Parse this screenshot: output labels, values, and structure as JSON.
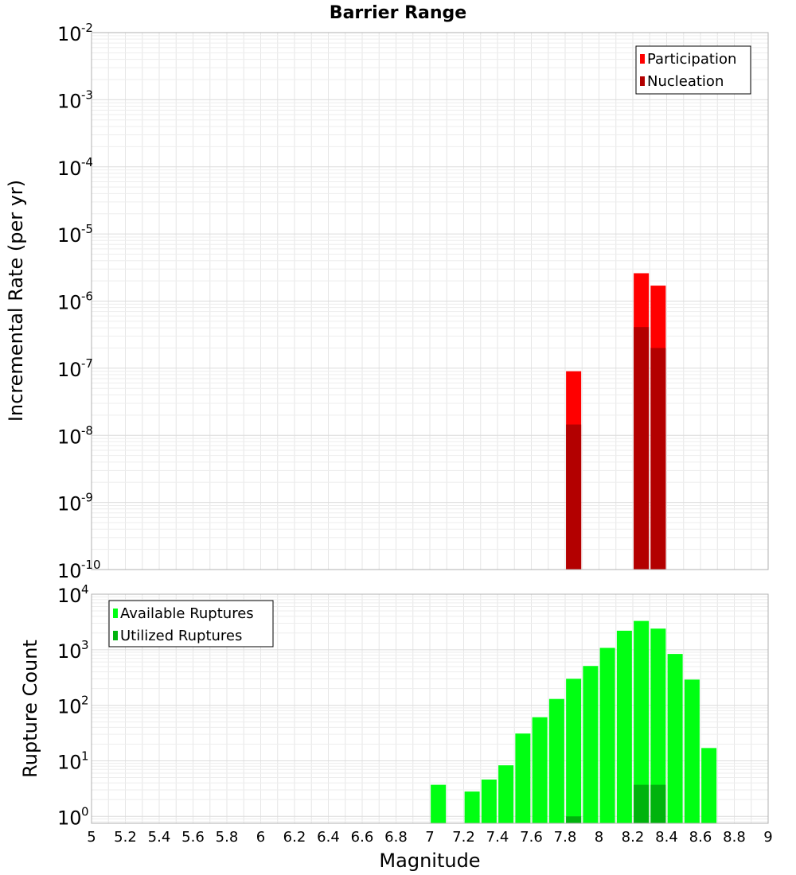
{
  "chart_data": [
    {
      "type": "bar",
      "title": "Barrier Range",
      "xlabel": "Magnitude",
      "ylabel": "Incremental Rate (per yr)",
      "yscale": "log",
      "xlim": [
        5,
        9
      ],
      "ylim": [
        1e-10,
        0.01
      ],
      "y_tick_exponents": [
        "-10",
        "-9",
        "-8",
        "-7",
        "-6",
        "-5",
        "-4",
        "-3",
        "-2"
      ],
      "y_tick_base": "10",
      "grid": true,
      "legend_position": "top-right",
      "series": [
        {
          "name": "Participation",
          "color": "#ff0000",
          "points": [
            {
              "x": 7.85,
              "y": 9e-08
            },
            {
              "x": 8.25,
              "y": 2.6e-06
            },
            {
              "x": 8.35,
              "y": 1.7e-06
            }
          ]
        },
        {
          "name": "Nucleation",
          "color": "#b30000",
          "points": [
            {
              "x": 7.85,
              "y": 1.45e-08
            },
            {
              "x": 8.25,
              "y": 4.1e-07
            },
            {
              "x": 8.35,
              "y": 2e-07
            }
          ]
        }
      ]
    },
    {
      "type": "bar",
      "title": "",
      "xlabel": "Magnitude",
      "ylabel": "Rupture Count",
      "yscale": "log",
      "xlim": [
        5,
        9
      ],
      "ylim": [
        0.75,
        10000
      ],
      "y_tick_exponents": [
        "0",
        "1",
        "2",
        "3",
        "4"
      ],
      "y_tick_base": "10",
      "x_ticks": [
        "5",
        "5.2",
        "5.4",
        "5.6",
        "5.8",
        "6",
        "6.2",
        "6.4",
        "6.6",
        "6.8",
        "7",
        "7.2",
        "7.4",
        "7.6",
        "7.8",
        "8",
        "8.2",
        "8.4",
        "8.6",
        "8.8",
        "9"
      ],
      "grid": true,
      "legend_position": "top-left",
      "series": [
        {
          "name": "Available Ruptures",
          "color": "#00ff12",
          "points": [
            {
              "x": 7.05,
              "y": 3.7
            },
            {
              "x": 7.25,
              "y": 2.8
            },
            {
              "x": 7.35,
              "y": 4.6
            },
            {
              "x": 7.45,
              "y": 8.3
            },
            {
              "x": 7.55,
              "y": 31
            },
            {
              "x": 7.65,
              "y": 61
            },
            {
              "x": 7.75,
              "y": 130
            },
            {
              "x": 7.85,
              "y": 300
            },
            {
              "x": 7.95,
              "y": 510
            },
            {
              "x": 8.05,
              "y": 1080
            },
            {
              "x": 8.15,
              "y": 2200
            },
            {
              "x": 8.25,
              "y": 3300
            },
            {
              "x": 8.35,
              "y": 2400
            },
            {
              "x": 8.45,
              "y": 840
            },
            {
              "x": 8.55,
              "y": 290
            },
            {
              "x": 8.65,
              "y": 17
            }
          ]
        },
        {
          "name": "Utilized Ruptures",
          "color": "#00b30d",
          "points": [
            {
              "x": 7.85,
              "y": 1
            },
            {
              "x": 8.25,
              "y": 3.7
            },
            {
              "x": 8.35,
              "y": 3.7
            }
          ]
        }
      ]
    }
  ]
}
